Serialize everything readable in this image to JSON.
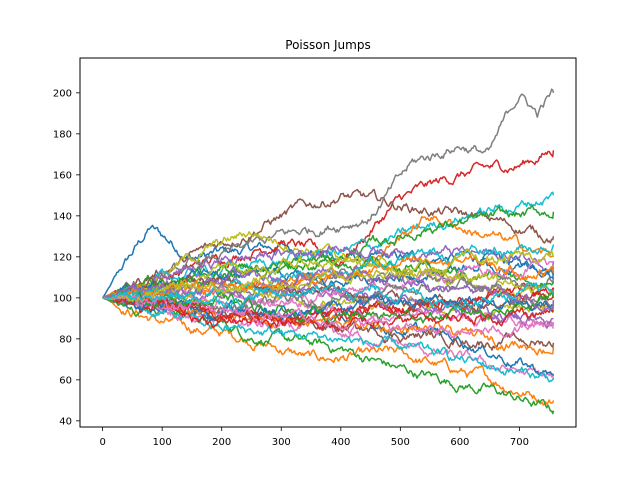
{
  "chart_data": {
    "type": "line",
    "title": "Poisson Jumps",
    "xlabel": "",
    "ylabel": "",
    "xlim": [
      -38,
      795
    ],
    "ylim": [
      37,
      217
    ],
    "xticks": [
      0,
      100,
      200,
      300,
      400,
      500,
      600,
      700
    ],
    "yticks": [
      40,
      60,
      80,
      100,
      120,
      140,
      160,
      180,
      200
    ],
    "grid": false,
    "legend": "none",
    "n_steps": 757,
    "start_value": 100,
    "palette": [
      "#1f77b4",
      "#ff7f0e",
      "#2ca02c",
      "#d62728",
      "#9467bd",
      "#8c564b",
      "#e377c2",
      "#7f7f7f",
      "#bcbd22",
      "#17becf"
    ],
    "series": [
      {
        "color": "#1f77b4",
        "values": [
          [
            0,
            100
          ],
          [
            80,
            134
          ],
          [
            150,
            120
          ],
          [
            300,
            125
          ],
          [
            450,
            118
          ],
          [
            600,
            120
          ],
          [
            757,
            115
          ]
        ]
      },
      {
        "color": "#ff7f0e",
        "values": [
          [
            0,
            100
          ],
          [
            100,
            88
          ],
          [
            250,
            80
          ],
          [
            350,
            70
          ],
          [
            500,
            72
          ],
          [
            650,
            60
          ],
          [
            757,
            50
          ]
        ]
      },
      {
        "color": "#2ca02c",
        "values": [
          [
            0,
            100
          ],
          [
            120,
            95
          ],
          [
            250,
            82
          ],
          [
            400,
            75
          ],
          [
            500,
            65
          ],
          [
            650,
            55
          ],
          [
            757,
            45
          ]
        ]
      },
      {
        "color": "#d62728",
        "values": [
          [
            0,
            100
          ],
          [
            120,
            112
          ],
          [
            300,
            128
          ],
          [
            400,
            118
          ],
          [
            500,
            148
          ],
          [
            600,
            160
          ],
          [
            700,
            165
          ],
          [
            757,
            172
          ]
        ]
      },
      {
        "color": "#9467bd",
        "values": [
          [
            0,
            100
          ],
          [
            150,
            110
          ],
          [
            300,
            105
          ],
          [
            500,
            100
          ],
          [
            650,
            90
          ],
          [
            757,
            88
          ]
        ]
      },
      {
        "color": "#8c564b",
        "values": [
          [
            0,
            100
          ],
          [
            150,
            120
          ],
          [
            300,
            140
          ],
          [
            400,
            150
          ],
          [
            500,
            145
          ],
          [
            650,
            138
          ],
          [
            757,
            130
          ]
        ]
      },
      {
        "color": "#e377c2",
        "values": [
          [
            0,
            100
          ],
          [
            150,
            90
          ],
          [
            300,
            85
          ],
          [
            450,
            80
          ],
          [
            600,
            70
          ],
          [
            757,
            60
          ]
        ]
      },
      {
        "color": "#7f7f7f",
        "values": [
          [
            0,
            100
          ],
          [
            150,
            115
          ],
          [
            300,
            130
          ],
          [
            450,
            140
          ],
          [
            520,
            165
          ],
          [
            600,
            175
          ],
          [
            650,
            170
          ],
          [
            700,
            200
          ],
          [
            730,
            190
          ],
          [
            757,
            200
          ]
        ]
      },
      {
        "color": "#bcbd22",
        "values": [
          [
            0,
            100
          ],
          [
            150,
            120
          ],
          [
            250,
            132
          ],
          [
            400,
            120
          ],
          [
            550,
            110
          ],
          [
            757,
            100
          ]
        ]
      },
      {
        "color": "#17becf",
        "values": [
          [
            0,
            100
          ],
          [
            150,
            112
          ],
          [
            300,
            118
          ],
          [
            450,
            125
          ],
          [
            600,
            140
          ],
          [
            700,
            145
          ],
          [
            757,
            150
          ]
        ]
      },
      {
        "color": "#1f77b4",
        "values": [
          [
            0,
            100
          ],
          [
            200,
            95
          ],
          [
            400,
            90
          ],
          [
            600,
            80
          ],
          [
            757,
            62
          ]
        ]
      },
      {
        "color": "#ff7f0e",
        "values": [
          [
            0,
            100
          ],
          [
            200,
            105
          ],
          [
            400,
            110
          ],
          [
            550,
            140
          ],
          [
            650,
            130
          ],
          [
            757,
            120
          ]
        ]
      },
      {
        "color": "#2ca02c",
        "values": [
          [
            0,
            100
          ],
          [
            200,
            110
          ],
          [
            400,
            120
          ],
          [
            550,
            135
          ],
          [
            650,
            138
          ],
          [
            757,
            142
          ]
        ]
      },
      {
        "color": "#d62728",
        "values": [
          [
            0,
            100
          ],
          [
            150,
            95
          ],
          [
            300,
            90
          ],
          [
            500,
            95
          ],
          [
            650,
            100
          ],
          [
            757,
            105
          ]
        ]
      },
      {
        "color": "#9467bd",
        "values": [
          [
            0,
            100
          ],
          [
            200,
            118
          ],
          [
            400,
            125
          ],
          [
            600,
            122
          ],
          [
            757,
            118
          ]
        ]
      },
      {
        "color": "#8c564b",
        "values": [
          [
            0,
            100
          ],
          [
            200,
            92
          ],
          [
            400,
            85
          ],
          [
            600,
            80
          ],
          [
            757,
            78
          ]
        ]
      },
      {
        "color": "#e377c2",
        "values": [
          [
            0,
            100
          ],
          [
            200,
            100
          ],
          [
            400,
            95
          ],
          [
            600,
            90
          ],
          [
            757,
            85
          ]
        ]
      },
      {
        "color": "#7f7f7f",
        "values": [
          [
            0,
            100
          ],
          [
            200,
            108
          ],
          [
            400,
            112
          ],
          [
            600,
            108
          ],
          [
            757,
            110
          ]
        ]
      },
      {
        "color": "#bcbd22",
        "values": [
          [
            0,
            100
          ],
          [
            200,
            102
          ],
          [
            400,
            98
          ],
          [
            600,
            95
          ],
          [
            757,
            97
          ]
        ]
      },
      {
        "color": "#17becf",
        "values": [
          [
            0,
            100
          ],
          [
            200,
            85
          ],
          [
            400,
            80
          ],
          [
            600,
            70
          ],
          [
            757,
            60
          ]
        ]
      },
      {
        "color": "#1f77b4",
        "values": [
          [
            0,
            100
          ],
          [
            200,
            112
          ],
          [
            400,
            108
          ],
          [
            600,
            115
          ],
          [
            757,
            113
          ]
        ]
      },
      {
        "color": "#ff7f0e",
        "values": [
          [
            0,
            100
          ],
          [
            200,
            90
          ],
          [
            400,
            88
          ],
          [
            600,
            82
          ],
          [
            757,
            76
          ]
        ]
      },
      {
        "color": "#2ca02c",
        "values": [
          [
            0,
            100
          ],
          [
            200,
            115
          ],
          [
            400,
            118
          ],
          [
            600,
            112
          ],
          [
            757,
            108
          ]
        ]
      },
      {
        "color": "#d62728",
        "values": [
          [
            0,
            100
          ],
          [
            200,
            88
          ],
          [
            400,
            92
          ],
          [
            600,
            98
          ],
          [
            757,
            102
          ]
        ]
      },
      {
        "color": "#9467bd",
        "values": [
          [
            0,
            100
          ],
          [
            200,
            104
          ],
          [
            400,
            100
          ],
          [
            600,
            94
          ],
          [
            757,
            90
          ]
        ]
      },
      {
        "color": "#8c564b",
        "values": [
          [
            0,
            100
          ],
          [
            200,
            110
          ],
          [
            400,
            102
          ],
          [
            600,
            96
          ],
          [
            757,
            95
          ]
        ]
      },
      {
        "color": "#e377c2",
        "values": [
          [
            0,
            100
          ],
          [
            200,
            96
          ],
          [
            400,
            104
          ],
          [
            600,
            112
          ],
          [
            757,
            118
          ]
        ]
      },
      {
        "color": "#7f7f7f",
        "values": [
          [
            0,
            100
          ],
          [
            200,
            95
          ],
          [
            400,
            100
          ],
          [
            600,
            105
          ],
          [
            757,
            98
          ]
        ]
      },
      {
        "color": "#bcbd22",
        "values": [
          [
            0,
            100
          ],
          [
            200,
            113
          ],
          [
            400,
            118
          ],
          [
            600,
            110
          ],
          [
            757,
            104
          ]
        ]
      },
      {
        "color": "#17becf",
        "values": [
          [
            0,
            100
          ],
          [
            200,
            104
          ],
          [
            400,
            115
          ],
          [
            600,
            122
          ],
          [
            757,
            126
          ]
        ]
      },
      {
        "color": "#1f77b4",
        "values": [
          [
            0,
            100
          ],
          [
            200,
            93
          ],
          [
            400,
            95
          ],
          [
            600,
            100
          ],
          [
            757,
            96
          ]
        ]
      },
      {
        "color": "#ff7f0e",
        "values": [
          [
            0,
            100
          ],
          [
            200,
            106
          ],
          [
            400,
            112
          ],
          [
            600,
            118
          ],
          [
            757,
            112
          ]
        ]
      },
      {
        "color": "#2ca02c",
        "values": [
          [
            0,
            100
          ],
          [
            200,
            98
          ],
          [
            400,
            90
          ],
          [
            600,
            92
          ],
          [
            757,
            100
          ]
        ]
      },
      {
        "color": "#d62728",
        "values": [
          [
            0,
            100
          ],
          [
            200,
            92
          ],
          [
            400,
            86
          ],
          [
            600,
            90
          ],
          [
            757,
            94
          ]
        ]
      },
      {
        "color": "#9467bd",
        "values": [
          [
            0,
            100
          ],
          [
            200,
            108
          ],
          [
            400,
            112
          ],
          [
            600,
            104
          ],
          [
            757,
            99
          ]
        ]
      },
      {
        "color": "#e377c2",
        "values": [
          [
            0,
            100
          ],
          [
            200,
            94
          ],
          [
            400,
            88
          ],
          [
            600,
            82
          ],
          [
            757,
            88
          ]
        ]
      },
      {
        "color": "#bcbd22",
        "values": [
          [
            0,
            100
          ],
          [
            200,
            107
          ],
          [
            400,
            110
          ],
          [
            600,
            116
          ],
          [
            757,
            120
          ]
        ]
      },
      {
        "color": "#17becf",
        "values": [
          [
            0,
            100
          ],
          [
            200,
            100
          ],
          [
            400,
            105
          ],
          [
            600,
            100
          ],
          [
            757,
            102
          ]
        ]
      }
    ]
  }
}
